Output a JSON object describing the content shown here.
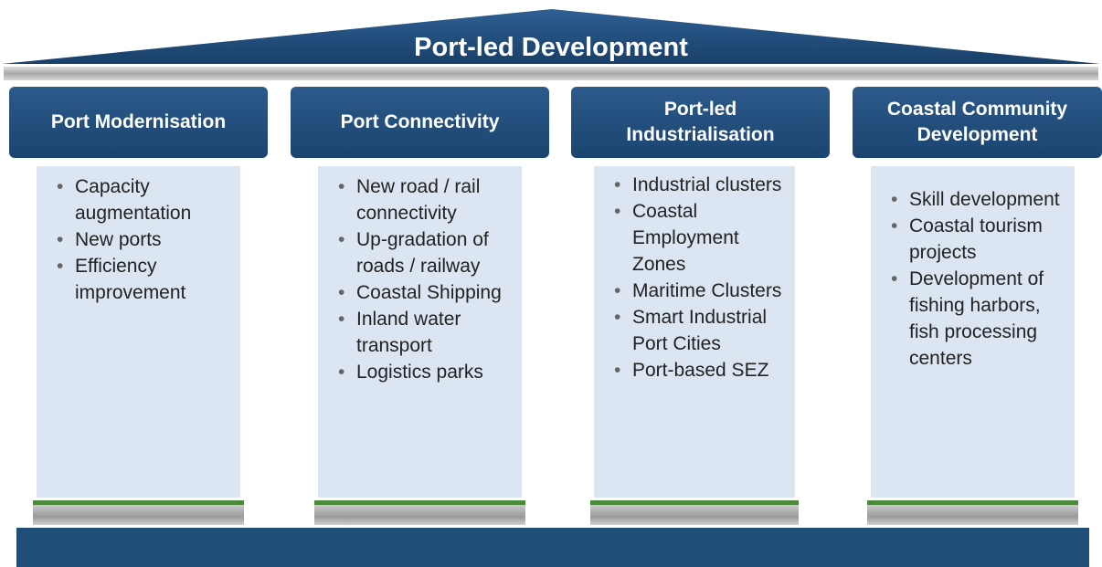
{
  "title": "Port-led Development",
  "pillars": [
    {
      "heading": "Port Modernisation",
      "items": [
        "Capacity augmentation",
        "New ports",
        "Efficiency improvement"
      ]
    },
    {
      "heading": "Port Connectivity",
      "items": [
        "New road / rail connectivity",
        "Up-gradation of roads / railway",
        "Coastal Shipping",
        "Inland water transport",
        "Logistics parks"
      ]
    },
    {
      "heading": "Port-led Industrialisation",
      "items": [
        "Industrial clusters",
        "Coastal Employment Zones",
        "Maritime Clusters",
        "Smart Industrial Port Cities",
        "Port-based SEZ"
      ]
    },
    {
      "heading": "Coastal Community Development",
      "items": [
        "Skill development",
        "Coastal tourism projects",
        "Development of fishing harbors, fish processing centers"
      ]
    }
  ]
}
